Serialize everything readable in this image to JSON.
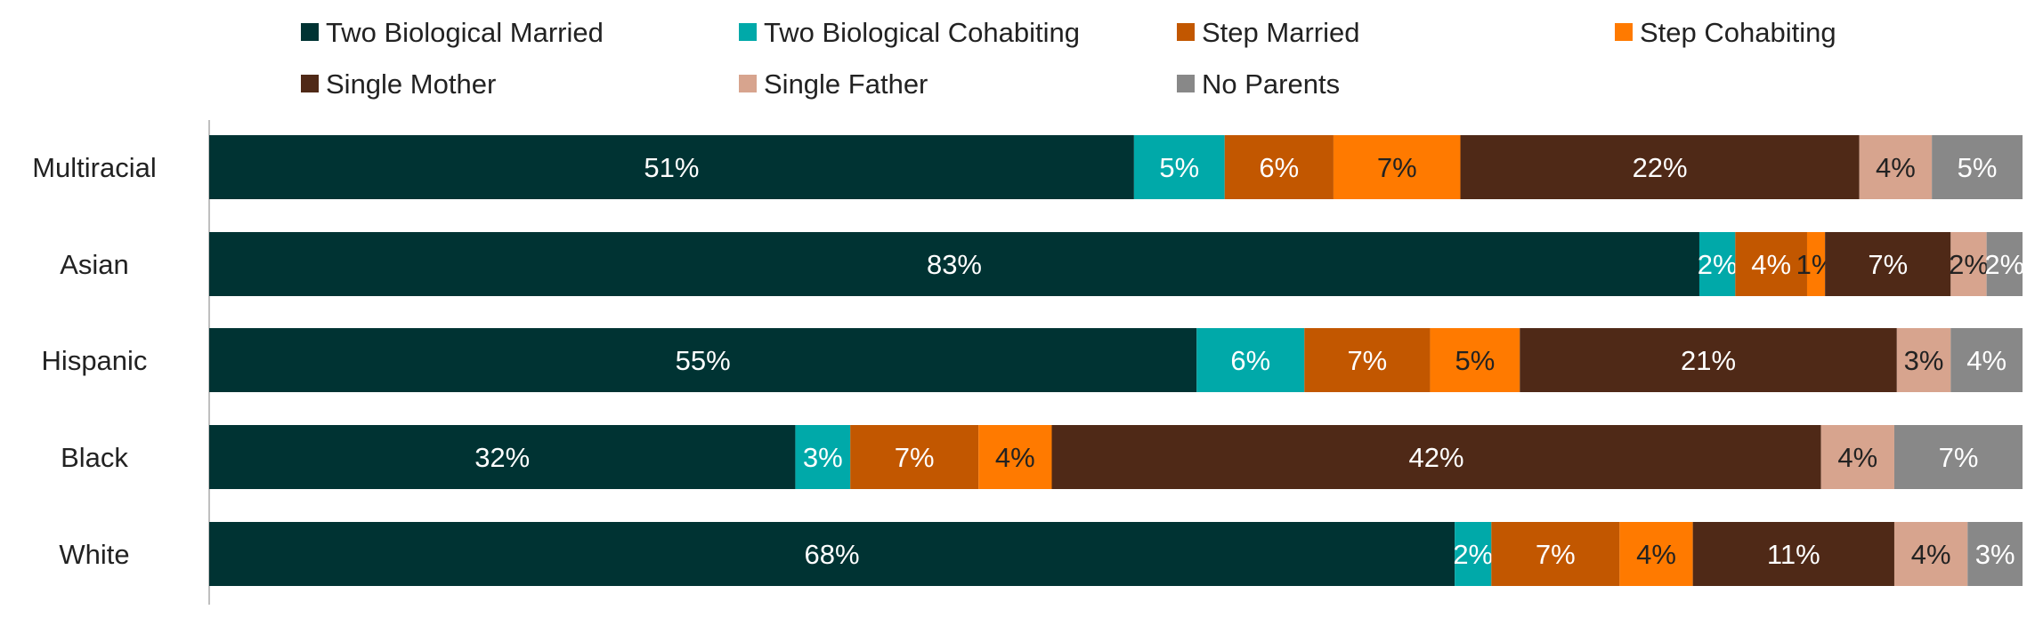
{
  "chart_data": {
    "type": "bar",
    "orientation": "horizontal",
    "stacked": true,
    "title": "",
    "xlabel": "",
    "ylabel": "",
    "categories": [
      "Multiracial",
      "Asian",
      "Hispanic",
      "Black",
      "White"
    ],
    "series": [
      {
        "name": "Two Biological Married",
        "color": "#003333",
        "label_color": "#ffffff",
        "values": [
          51,
          83,
          55,
          32,
          68
        ]
      },
      {
        "name": "Two Biological Cohabiting",
        "color": "#00a9a9",
        "label_color": "#ffffff",
        "values": [
          5,
          2,
          6,
          3,
          2
        ]
      },
      {
        "name": "Step Married",
        "color": "#c25700",
        "label_color": "#ffffff",
        "values": [
          6,
          4,
          7,
          7,
          7
        ]
      },
      {
        "name": "Step Cohabiting",
        "color": "#ff7a00",
        "label_color": "#222222",
        "values": [
          7,
          1,
          5,
          4,
          4
        ]
      },
      {
        "name": "Single Mother",
        "color": "#4f2917",
        "label_color": "#ffffff",
        "values": [
          22,
          7,
          21,
          42,
          11
        ]
      },
      {
        "name": "Single Father",
        "color": "#d7a48e",
        "label_color": "#222222",
        "values": [
          4,
          2,
          3,
          4,
          4
        ]
      },
      {
        "name": "No Parents",
        "color": "#888888",
        "label_color": "#ffffff",
        "values": [
          5,
          2,
          4,
          7,
          3
        ]
      }
    ],
    "value_suffix": "%",
    "legend_position": "top",
    "grid": false
  }
}
